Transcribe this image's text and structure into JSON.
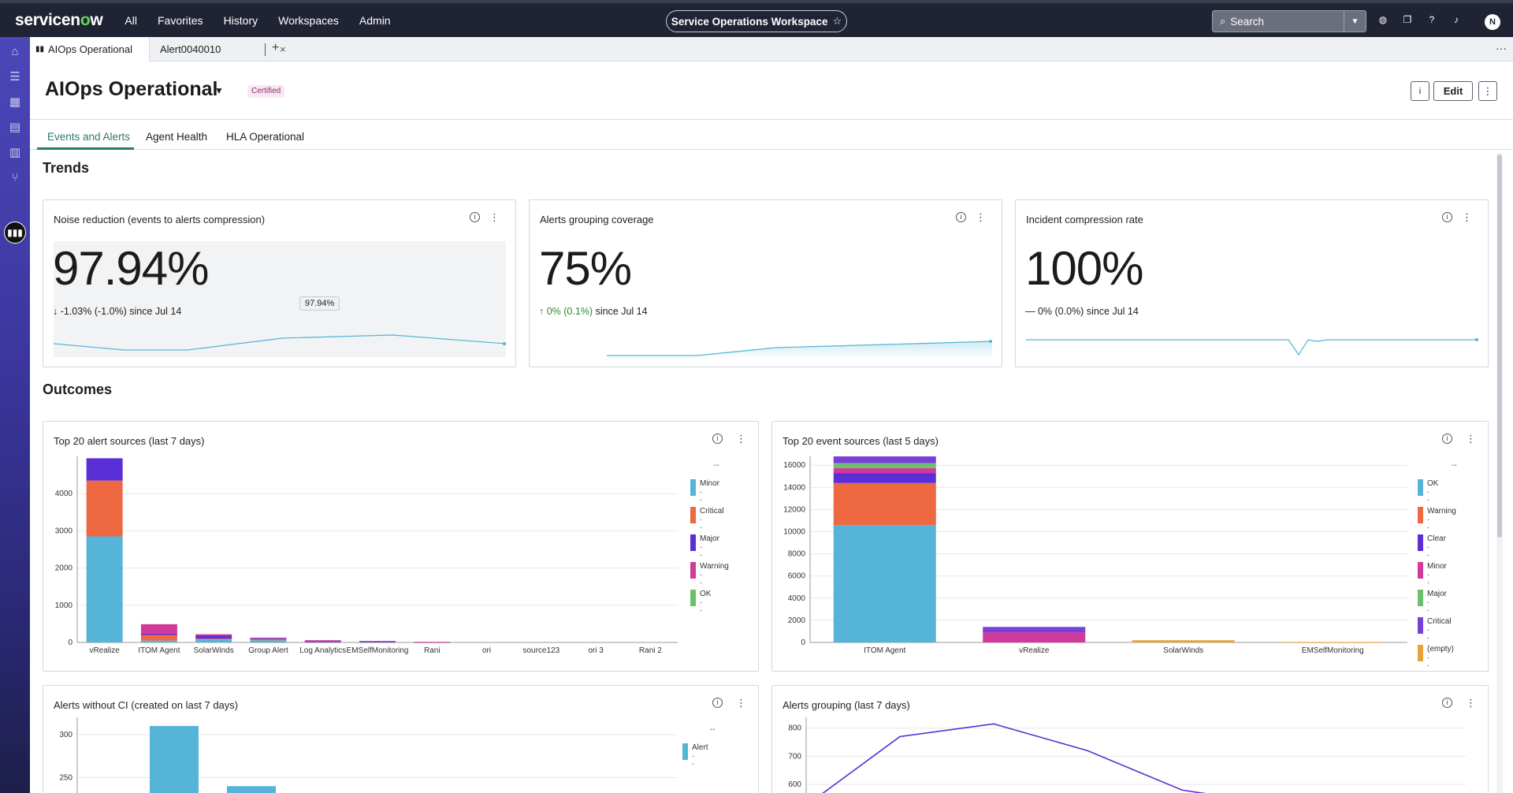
{
  "nav": {
    "logo_a": "servicen",
    "logo_o": "o",
    "logo_b": "w",
    "menu": [
      "All",
      "Favorites",
      "History",
      "Workspaces",
      "Admin"
    ],
    "workspace": "Service Operations Workspace",
    "search_placeholder": "Search",
    "avatar_initial": "N"
  },
  "tabs": {
    "active": "AIOps Operational",
    "second": "Alert0040010"
  },
  "page": {
    "title": "AIOps Operational",
    "badge": "Certified",
    "edit_label": "Edit",
    "subtabs": [
      "Events and Alerts",
      "Agent Health",
      "HLA Operational"
    ]
  },
  "sections": {
    "trends": "Trends",
    "outcomes": "Outcomes"
  },
  "colors": {
    "blue": "#56b4d9",
    "red": "#ee6842",
    "purple": "#5b2fd6",
    "magenta": "#d13a9a",
    "green": "#6cbf6b",
    "orange": "#e8a33a",
    "violet": "#7a3ed9",
    "line": "#4fb6d6"
  },
  "trends": [
    {
      "title": "Noise reduction (events to alerts compression)",
      "value": "97.94%",
      "arrow": "↓",
      "delta": "-1.03% (-1.0%)",
      "since": "since Jul 14",
      "tooltip": "97.94%"
    },
    {
      "title": "Alerts grouping coverage",
      "value": "75%",
      "arrow": "↑",
      "delta": "0% (0.1%)",
      "since": "since Jul 14"
    },
    {
      "title": "Incident compression rate",
      "value": "100%",
      "arrow": "—",
      "delta": "0% (0.0%)",
      "since": "since Jul 14"
    }
  ],
  "charts": {
    "alert_sources": {
      "title": "Top 20 alert sources (last 7 days)",
      "legend": [
        "Minor",
        "Critical",
        "Major",
        "Warning",
        "OK"
      ],
      "legend_val": "--"
    },
    "event_sources": {
      "title": "Top 20 event sources (last 5 days)",
      "legend": [
        "OK",
        "Warning",
        "Clear",
        "Minor",
        "Major",
        "Critical",
        "(empty)"
      ],
      "legend_val": "--"
    },
    "alerts_without_ci": {
      "title": "Alerts without CI (created on last 7 days)",
      "legend": [
        "Alert"
      ],
      "legend_val": "--"
    },
    "alerts_grouping": {
      "title": "Alerts grouping (last 7 days)"
    }
  },
  "chart_data": [
    {
      "type": "bar",
      "stacked": true,
      "title": "Top 20 alert sources (last 7 days)",
      "categories": [
        "vRealize",
        "ITOM Agent",
        "SolarWinds",
        "Group Alert",
        "Log Analytics",
        "EMSelfMonitoring",
        "Rani",
        "ori",
        "source123",
        "ori 3",
        "Rani 2"
      ],
      "series": [
        {
          "name": "Minor",
          "values": [
            2850,
            50,
            80,
            60,
            15,
            10,
            5,
            0,
            0,
            0,
            0
          ]
        },
        {
          "name": "Critical",
          "values": [
            1500,
            150,
            20,
            30,
            10,
            10,
            5,
            0,
            0,
            0,
            0
          ]
        },
        {
          "name": "Major",
          "values": [
            600,
            40,
            80,
            20,
            5,
            5,
            0,
            0,
            0,
            0,
            0
          ]
        },
        {
          "name": "Warning",
          "values": [
            0,
            250,
            40,
            20,
            30,
            15,
            5,
            0,
            0,
            0,
            0
          ]
        },
        {
          "name": "OK",
          "values": [
            0,
            0,
            0,
            0,
            0,
            0,
            0,
            0,
            0,
            0,
            0
          ]
        }
      ],
      "yticks": [
        0,
        1000,
        2000,
        3000,
        4000
      ],
      "ylim": [
        0,
        5000
      ]
    },
    {
      "type": "bar",
      "stacked": true,
      "title": "Top 20 event sources (last 5 days)",
      "categories": [
        "ITOM Agent",
        "vRealize",
        "SolarWinds",
        "EMSelfMonitoring"
      ],
      "series": [
        {
          "name": "OK",
          "values": [
            10600,
            0,
            0,
            0
          ]
        },
        {
          "name": "Warning",
          "values": [
            3800,
            0,
            0,
            0
          ]
        },
        {
          "name": "Clear",
          "values": [
            900,
            0,
            0,
            0
          ]
        },
        {
          "name": "Minor",
          "values": [
            450,
            900,
            0,
            0
          ]
        },
        {
          "name": "Major",
          "values": [
            450,
            0,
            0,
            0
          ]
        },
        {
          "name": "Critical",
          "values": [
            600,
            500,
            0,
            0
          ]
        },
        {
          "name": "(empty)",
          "values": [
            0,
            0,
            200,
            20
          ]
        }
      ],
      "yticks": [
        0,
        2000,
        4000,
        6000,
        8000,
        10000,
        12000,
        14000,
        16000
      ],
      "ylim": [
        0,
        16800
      ]
    },
    {
      "type": "bar",
      "title": "Alerts without CI (created on last 7 days)",
      "series": [
        {
          "name": "Alert",
          "values": [
            310,
            240
          ]
        }
      ],
      "yticks": [
        250,
        300
      ],
      "ylim": [
        200,
        320
      ]
    },
    {
      "type": "line",
      "title": "Alerts grouping (last 7 days)",
      "values": [
        560,
        770,
        815,
        720,
        580,
        530
      ],
      "yticks": [
        600,
        700,
        800
      ],
      "ylim": [
        550,
        830
      ]
    }
  ]
}
